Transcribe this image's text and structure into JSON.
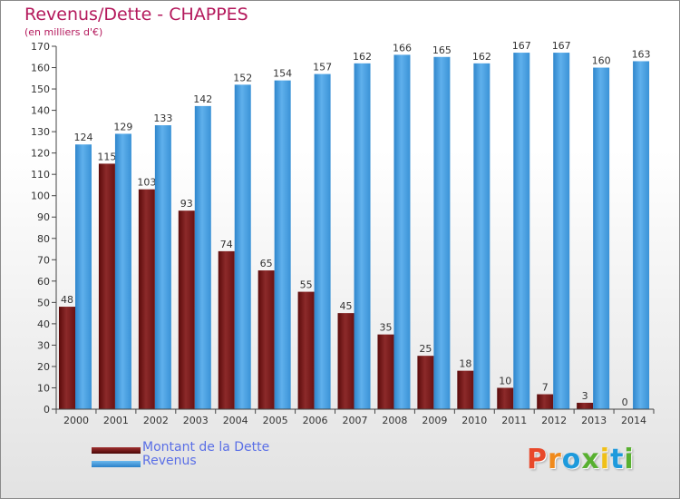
{
  "chart_data": {
    "type": "bar",
    "title": "Revenus/Dette - CHAPPES",
    "subtitle": "(en milliers d'€)",
    "categories": [
      "2000",
      "2001",
      "2002",
      "2003",
      "2004",
      "2005",
      "2006",
      "2007",
      "2008",
      "2009",
      "2010",
      "2011",
      "2012",
      "2013",
      "2014"
    ],
    "series": [
      {
        "name": "Montant de la Dette",
        "color": "#7a1f1f",
        "values": [
          48,
          115,
          103,
          93,
          74,
          65,
          55,
          45,
          35,
          25,
          18,
          10,
          7,
          3,
          0
        ]
      },
      {
        "name": "Revenus",
        "color": "#4aa0e0",
        "values": [
          124,
          129,
          133,
          142,
          152,
          154,
          157,
          162,
          166,
          165,
          162,
          167,
          167,
          160,
          163
        ]
      }
    ],
    "ylim": [
      0,
      170
    ],
    "ytick_step": 10,
    "grid": false,
    "legend_position": "bottom-left"
  },
  "logo": {
    "letters": [
      "P",
      "r",
      "o",
      "x",
      "i",
      "t",
      "i"
    ],
    "colors": [
      "#e8482a",
      "#f08a1c",
      "#1e9adc",
      "#58b030",
      "#f0c018",
      "#1e9adc",
      "#58b030"
    ]
  }
}
